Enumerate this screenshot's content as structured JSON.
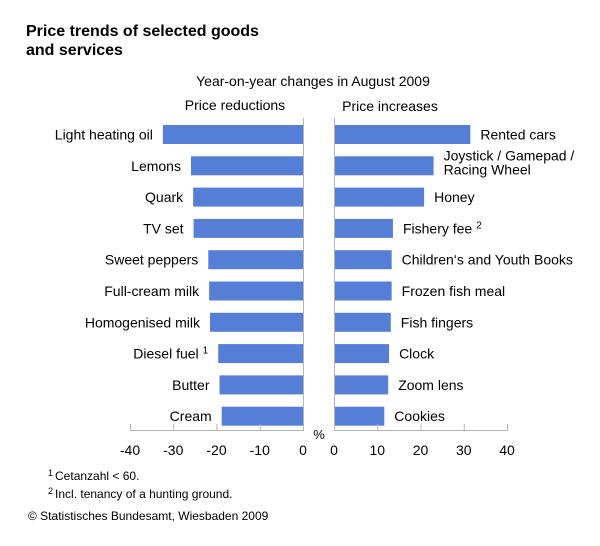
{
  "chart_data": {
    "type": "bar",
    "title": "Price trends of selected goods and services",
    "title_lines": [
      "Price trends of selected goods",
      "and services"
    ],
    "subtitle": "Year-on-year changes in August 2009",
    "unit_label": "%",
    "bar_color": "#557FD6",
    "panels": [
      {
        "name": "Price reductions",
        "orientation": "leftward",
        "xlim": [
          -40,
          0
        ],
        "ticks": [
          -40,
          -30,
          -20,
          -10,
          0
        ],
        "categories": [
          "Light heating oil",
          "Lemons",
          "Quark",
          "TV set",
          "Sweet peppers",
          "Full-cream milk",
          "Homogenised milk",
          "Diesel fuel",
          "Butter",
          "Cream"
        ],
        "footnote_marks": [
          "",
          "",
          "",
          "",
          "",
          "",
          "",
          "1",
          "",
          ""
        ],
        "values": [
          -32.4,
          -25.9,
          -25.4,
          -25.3,
          -21.9,
          -21.7,
          -21.5,
          -19.6,
          -19.3,
          -18.8
        ]
      },
      {
        "name": "Price increases",
        "orientation": "rightward",
        "xlim": [
          0,
          40
        ],
        "ticks": [
          0,
          10,
          20,
          30,
          40
        ],
        "categories": [
          "Rented cars",
          "Joystick / Gamepad / Racing Wheel",
          "Honey",
          "Fishery fee",
          "Children's and Youth Books",
          "Frozen fish meal",
          "Fish fingers",
          "Clock",
          "Zoom lens",
          "Cookies"
        ],
        "category_lines": [
          [
            "Rented cars"
          ],
          [
            "Joystick / Gamepad /",
            "Racing Wheel"
          ],
          [
            "Honey"
          ],
          [
            "Fishery fee"
          ],
          [
            "Children‘s and Youth Books"
          ],
          [
            "Frozen fish meal"
          ],
          [
            "Fish fingers"
          ],
          [
            "Clock"
          ],
          [
            "Zoom lens"
          ],
          [
            "Cookies"
          ]
        ],
        "footnote_marks": [
          "",
          "",
          "",
          "2",
          "",
          "",
          "",
          "",
          "",
          ""
        ],
        "values": [
          31.3,
          22.8,
          20.6,
          13.4,
          13.1,
          13.1,
          12.9,
          12.5,
          12.3,
          11.4
        ]
      }
    ],
    "grid": false,
    "legend": "none"
  },
  "footnotes": [
    {
      "mark": "1",
      "text": "Cetanzahl < 60."
    },
    {
      "mark": "2",
      "text": "Incl. tenancy of a hunting ground."
    }
  ],
  "source": "© Statistisches Bundesamt, Wiesbaden 2009"
}
